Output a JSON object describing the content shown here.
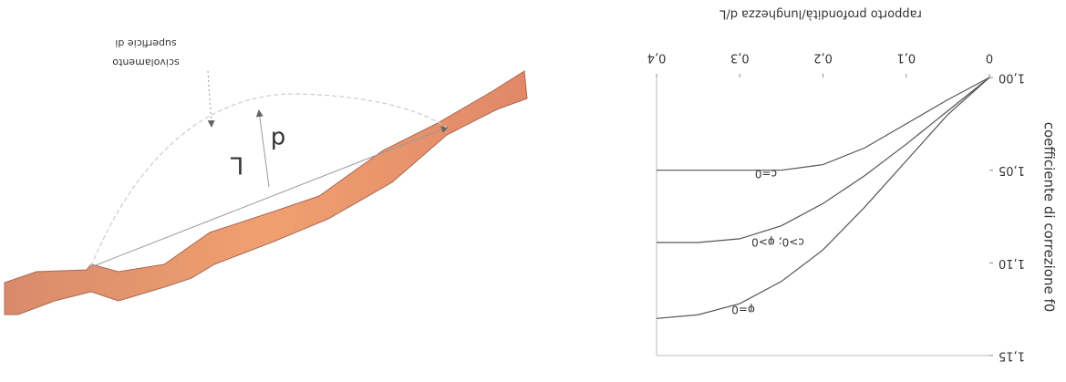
{
  "chart_data": {
    "type": "line",
    "x_label": "rapporto profondità/lunghezza  d/L",
    "y_label": "coefficiente di correzione f0",
    "x": [
      0,
      0.05,
      0.1,
      0.15,
      0.2,
      0.25,
      0.3,
      0.35,
      0.4
    ],
    "series": [
      {
        "name": "c=0",
        "color": "#555555",
        "values": [
          1.0,
          1.012,
          1.025,
          1.038,
          1.047,
          1.05,
          1.05,
          1.05,
          1.05
        ]
      },
      {
        "name": "c>0; φ>0",
        "color": "#555555",
        "values": [
          1.0,
          1.018,
          1.036,
          1.053,
          1.068,
          1.08,
          1.087,
          1.089,
          1.089
        ]
      },
      {
        "name": "φ=0",
        "color": "#555555",
        "values": [
          1.0,
          1.02,
          1.045,
          1.07,
          1.093,
          1.11,
          1.122,
          1.128,
          1.13
        ]
      }
    ],
    "xlim": [
      0,
      0.4
    ],
    "ylim": [
      1.0,
      1.15
    ],
    "xticks": [
      0,
      {
        "value": 0.1,
        "label": "0,1"
      },
      {
        "value": 0.2,
        "label": "0,2"
      },
      {
        "value": 0.3,
        "label": "0,3"
      },
      {
        "value": 0.4,
        "label": "0,4"
      }
    ],
    "yticks": [
      {
        "value": 1.0,
        "label": "1,00"
      },
      {
        "value": 1.05,
        "label": "1,05"
      },
      {
        "value": 1.1,
        "label": "1,10"
      },
      {
        "value": 1.15,
        "label": "1,15"
      }
    ],
    "grid": false,
    "rotated": true
  },
  "diagram": {
    "surface_label_1": "superficie di",
    "surface_label_2": "scivolamento",
    "length_label": "L",
    "depth_label": "d"
  }
}
